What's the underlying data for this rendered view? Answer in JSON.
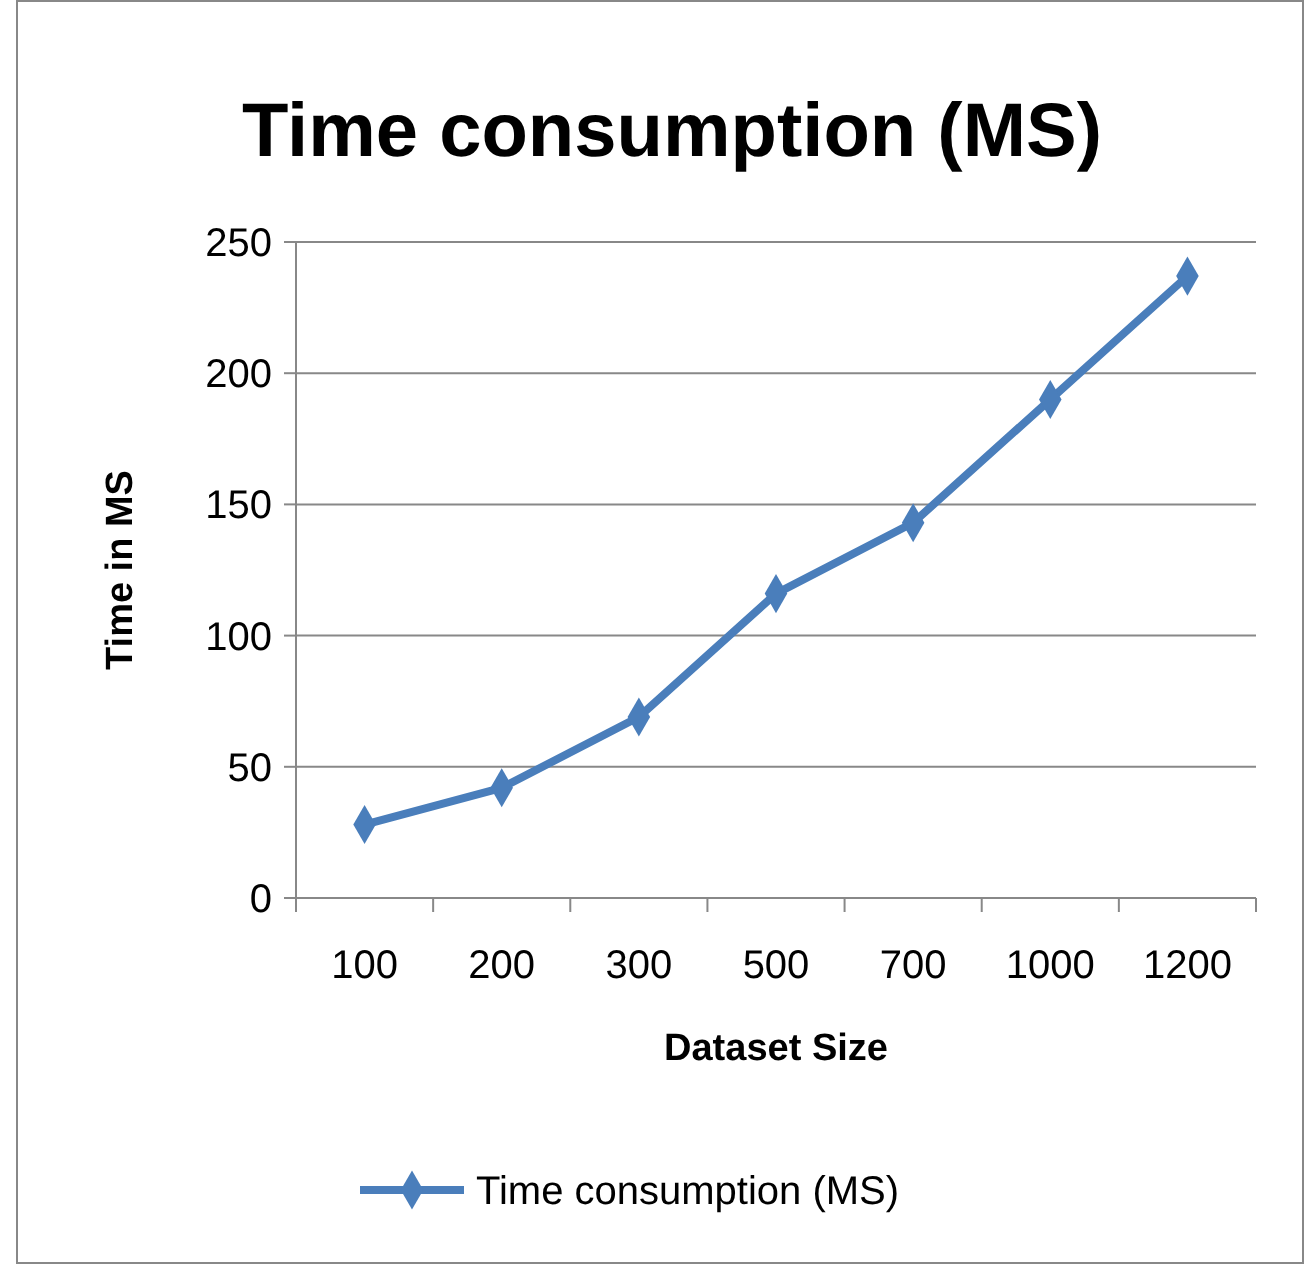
{
  "chart_data": {
    "type": "line",
    "title": "Time consumption (MS)",
    "xlabel": "Dataset Size",
    "ylabel": "Time in MS",
    "categories": [
      "100",
      "200",
      "300",
      "500",
      "700",
      "1000",
      "1200"
    ],
    "series": [
      {
        "name": "Time consumption (MS)",
        "color": "#4a7ebb",
        "values": [
          28,
          42,
          69,
          116,
          143,
          190,
          237
        ]
      }
    ],
    "ylim": [
      0,
      250
    ],
    "yticks": [
      0,
      50,
      100,
      150,
      200,
      250
    ],
    "grid": "y",
    "legend": "bottom",
    "marker": "diamond",
    "line_style": "solid"
  }
}
